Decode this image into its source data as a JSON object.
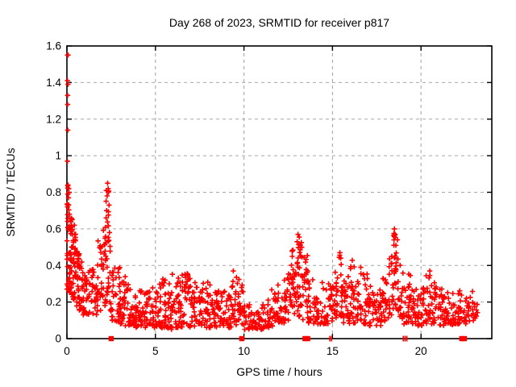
{
  "figure": {
    "background": "#ffffff"
  },
  "chart_data": {
    "type": "scatter",
    "title": "Day 268 of 2023, SRMTID for receiver p817",
    "xlabel": "GPS time / hours",
    "ylabel": "SRMTID / TECUs",
    "xlim": [
      0,
      24
    ],
    "ylim": [
      0,
      1.6
    ],
    "xticks": {
      "values": [
        0,
        5,
        10,
        15,
        20
      ],
      "labels": [
        "0",
        "5",
        "10",
        "15",
        "20"
      ]
    },
    "yticks": {
      "values": [
        0,
        0.2,
        0.4,
        0.6,
        0.8,
        1.0,
        1.2,
        1.4,
        1.6
      ],
      "labels": [
        "0",
        "0.2",
        "0.4",
        "0.6",
        "0.8",
        "1",
        "1.2",
        "1.4",
        "1.6"
      ]
    },
    "grid": {
      "show": true,
      "style": "dashed",
      "color": "#a8a8a8"
    },
    "marker": {
      "shape": "plus",
      "color": "#ff0000",
      "size": 7
    },
    "frame_color": "#000000",
    "seed": 20230268,
    "outlier_points": [
      [
        0.03,
        1.55
      ],
      [
        0.07,
        1.55
      ],
      [
        0.03,
        1.41
      ],
      [
        0.06,
        1.39
      ],
      [
        0.04,
        1.33
      ],
      [
        0.04,
        1.28
      ],
      [
        0.05,
        1.14
      ],
      [
        0.03,
        0.97
      ],
      [
        0.06,
        0.84
      ],
      [
        0.11,
        0.82
      ],
      [
        0.05,
        0.79
      ],
      [
        0.09,
        0.77
      ],
      [
        0.03,
        0.72
      ],
      [
        0.14,
        0.68
      ],
      [
        0.3,
        0.65
      ],
      [
        0.42,
        0.62
      ],
      [
        2.3,
        0.85
      ],
      [
        2.34,
        0.8
      ],
      [
        2.27,
        0.78
      ],
      [
        2.38,
        0.73
      ],
      [
        2.22,
        0.66
      ],
      [
        9.4,
        0.37
      ],
      [
        13.05,
        0.57
      ],
      [
        13.12,
        0.555
      ],
      [
        13.0,
        0.53
      ],
      [
        13.18,
        0.51
      ],
      [
        15.42,
        0.47
      ],
      [
        15.47,
        0.44
      ],
      [
        18.5,
        0.6
      ],
      [
        18.54,
        0.57
      ],
      [
        18.47,
        0.54
      ],
      [
        18.58,
        0.51
      ],
      [
        20.5,
        0.37
      ]
    ],
    "density_bands": [
      [
        0.0,
        0.12,
        26,
        0.27,
        0.86,
        1.5
      ],
      [
        0.12,
        0.3,
        34,
        0.24,
        0.66,
        1.5
      ],
      [
        0.3,
        0.5,
        30,
        0.21,
        0.6,
        1.5
      ],
      [
        0.5,
        0.7,
        24,
        0.17,
        0.48,
        1.4
      ],
      [
        0.7,
        0.9,
        18,
        0.15,
        0.42,
        1.4
      ],
      [
        0.9,
        1.1,
        16,
        0.13,
        0.35,
        1.4
      ],
      [
        1.1,
        1.4,
        18,
        0.12,
        0.38,
        1.4
      ],
      [
        1.4,
        1.7,
        20,
        0.13,
        0.42,
        1.4
      ],
      [
        1.7,
        2.0,
        24,
        0.15,
        0.55,
        1.3
      ],
      [
        2.0,
        2.2,
        20,
        0.18,
        0.62,
        1.3
      ],
      [
        2.2,
        2.45,
        28,
        0.2,
        0.84,
        1.2
      ],
      [
        2.45,
        2.7,
        16,
        0.1,
        0.38,
        1.5
      ],
      [
        2.7,
        3.0,
        22,
        0.08,
        0.4,
        1.5
      ],
      [
        3.0,
        3.3,
        26,
        0.08,
        0.36,
        1.6
      ],
      [
        3.3,
        3.7,
        26,
        0.07,
        0.3,
        1.6
      ],
      [
        3.7,
        4.1,
        26,
        0.06,
        0.28,
        1.6
      ],
      [
        4.1,
        4.5,
        26,
        0.06,
        0.31,
        1.6
      ],
      [
        4.5,
        4.9,
        26,
        0.07,
        0.28,
        1.6
      ],
      [
        4.9,
        5.3,
        26,
        0.06,
        0.3,
        1.6
      ],
      [
        5.3,
        5.7,
        26,
        0.06,
        0.33,
        1.6
      ],
      [
        5.7,
        6.1,
        28,
        0.05,
        0.36,
        1.6
      ],
      [
        6.1,
        6.5,
        28,
        0.06,
        0.34,
        1.6
      ],
      [
        6.5,
        6.9,
        28,
        0.06,
        0.37,
        1.6
      ],
      [
        6.9,
        7.3,
        26,
        0.06,
        0.33,
        1.6
      ],
      [
        7.3,
        7.7,
        26,
        0.07,
        0.31,
        1.6
      ],
      [
        7.7,
        8.1,
        26,
        0.06,
        0.32,
        1.6
      ],
      [
        8.1,
        8.5,
        24,
        0.06,
        0.27,
        1.6
      ],
      [
        8.5,
        8.9,
        24,
        0.07,
        0.3,
        1.6
      ],
      [
        8.9,
        9.3,
        24,
        0.06,
        0.28,
        1.6
      ],
      [
        9.3,
        9.6,
        20,
        0.07,
        0.34,
        1.5
      ],
      [
        9.6,
        9.95,
        22,
        0.08,
        0.33,
        1.5
      ],
      [
        9.95,
        10.3,
        20,
        0.05,
        0.22,
        1.6
      ],
      [
        10.3,
        10.7,
        20,
        0.05,
        0.2,
        1.6
      ],
      [
        10.7,
        11.1,
        20,
        0.05,
        0.19,
        1.6
      ],
      [
        11.1,
        11.5,
        20,
        0.06,
        0.22,
        1.6
      ],
      [
        11.5,
        11.9,
        22,
        0.06,
        0.28,
        1.5
      ],
      [
        11.9,
        12.3,
        24,
        0.08,
        0.36,
        1.4
      ],
      [
        12.3,
        12.7,
        24,
        0.1,
        0.42,
        1.3
      ],
      [
        12.7,
        13.0,
        26,
        0.12,
        0.5,
        1.2
      ],
      [
        13.0,
        13.3,
        30,
        0.12,
        0.57,
        1.1
      ],
      [
        13.3,
        13.6,
        22,
        0.1,
        0.46,
        1.3
      ],
      [
        13.6,
        13.9,
        18,
        0.08,
        0.34,
        1.5
      ],
      [
        13.9,
        14.3,
        20,
        0.08,
        0.28,
        1.5
      ],
      [
        14.3,
        14.7,
        22,
        0.08,
        0.32,
        1.5
      ],
      [
        14.7,
        15.1,
        22,
        0.08,
        0.35,
        1.4
      ],
      [
        15.1,
        15.35,
        18,
        0.1,
        0.38,
        1.3
      ],
      [
        15.35,
        15.6,
        20,
        0.12,
        0.46,
        1.2
      ],
      [
        15.6,
        15.9,
        18,
        0.08,
        0.35,
        1.4
      ],
      [
        15.9,
        16.2,
        22,
        0.08,
        0.43,
        1.4
      ],
      [
        16.2,
        16.6,
        24,
        0.08,
        0.41,
        1.4
      ],
      [
        16.6,
        17.0,
        24,
        0.08,
        0.36,
        1.5
      ],
      [
        17.0,
        17.4,
        24,
        0.07,
        0.3,
        1.5
      ],
      [
        17.4,
        17.8,
        24,
        0.07,
        0.28,
        1.5
      ],
      [
        17.8,
        18.2,
        24,
        0.08,
        0.33,
        1.4
      ],
      [
        18.2,
        18.45,
        18,
        0.12,
        0.45,
        1.2
      ],
      [
        18.45,
        18.7,
        24,
        0.14,
        0.59,
        1.1
      ],
      [
        18.7,
        19.0,
        20,
        0.1,
        0.42,
        1.3
      ],
      [
        19.0,
        19.4,
        24,
        0.08,
        0.36,
        1.4
      ],
      [
        19.4,
        19.8,
        24,
        0.08,
        0.31,
        1.5
      ],
      [
        19.8,
        20.2,
        24,
        0.07,
        0.29,
        1.5
      ],
      [
        20.2,
        20.6,
        24,
        0.08,
        0.36,
        1.5
      ],
      [
        20.6,
        21.0,
        24,
        0.08,
        0.31,
        1.5
      ],
      [
        21.0,
        21.4,
        24,
        0.07,
        0.28,
        1.5
      ],
      [
        21.4,
        21.8,
        24,
        0.07,
        0.26,
        1.5
      ],
      [
        21.8,
        22.2,
        22,
        0.08,
        0.27,
        1.5
      ],
      [
        22.2,
        22.6,
        18,
        0.08,
        0.25,
        1.5
      ],
      [
        22.6,
        23.0,
        16,
        0.09,
        0.26,
        1.5
      ],
      [
        23.0,
        23.2,
        8,
        0.1,
        0.24,
        1.5
      ]
    ],
    "gap_squares_x": [
      2.5,
      9.88,
      13.45,
      13.6,
      22.3,
      22.45
    ],
    "axis_tick_points_x": [
      14.85,
      14.95,
      19.0,
      19.1,
      19.2
    ]
  }
}
